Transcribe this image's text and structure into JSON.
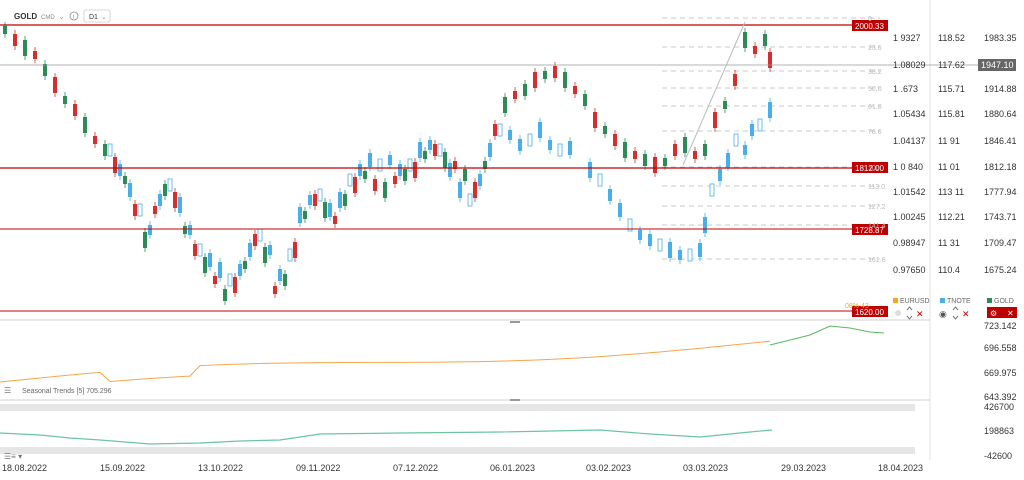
{
  "toolbar": {
    "symbol": "GOLD",
    "type": "CMD",
    "timeframe": "D1",
    "info_icon": "info-icon"
  },
  "price_axis": {
    "labels": [
      "1983.35",
      "1947.10",
      "1914.88",
      "1880.64",
      "1846.41",
      "1812.18",
      "1777.94",
      "1743.71",
      "1709.47",
      "1675.24"
    ],
    "current_price": "1947.10"
  },
  "levels": [
    {
      "value": "2000.33",
      "color": "#c00000"
    },
    {
      "value": "1812.00",
      "color": "#c00000"
    },
    {
      "value": "1728.87",
      "color": "#c00000"
    },
    {
      "value": "1620.00",
      "color": "#c00000"
    }
  ],
  "fib_labels": [
    "0",
    "23.6",
    "38.2",
    "50.0",
    "61.8",
    "78.6",
    "100",
    "113.0",
    "127.2",
    "141.4",
    "161.8"
  ],
  "eurusd_axis": [
    "1 9327",
    "1.08029",
    "1 .673",
    "1.05434",
    "1.04137",
    "1 0 840",
    "1.01542",
    "1.00245",
    "0.98947",
    "0.97650"
  ],
  "tnote_axis": [
    "118.52",
    "117.62",
    "115.71",
    "115.81",
    "11 91",
    "11 01",
    "113 11",
    "112.21",
    "11 31",
    "110.4"
  ],
  "legend": [
    {
      "name": "EURUSD",
      "color": "#f5a623"
    },
    {
      "name": "TNOTE",
      "color": "#4aaee8"
    },
    {
      "name": "GOLD",
      "color": "#2e8b57"
    }
  ],
  "osc_axis": [
    "723.142",
    "696.558",
    "669.975",
    "643.392"
  ],
  "seasonal_label": "Seasonal  Trends  [5]  705.296",
  "lower_axis": [
    "426700",
    "198863",
    "-42600"
  ],
  "dates": [
    "18.08.2022",
    "15.09.2022",
    "13.10.2022",
    "09.11.2022",
    "07.12.2022",
    "06.01.2023",
    "03.02.2023",
    "03.03.2023",
    "29.03.2023",
    "18.04.2023"
  ],
  "partial_text": "08% 43"
}
